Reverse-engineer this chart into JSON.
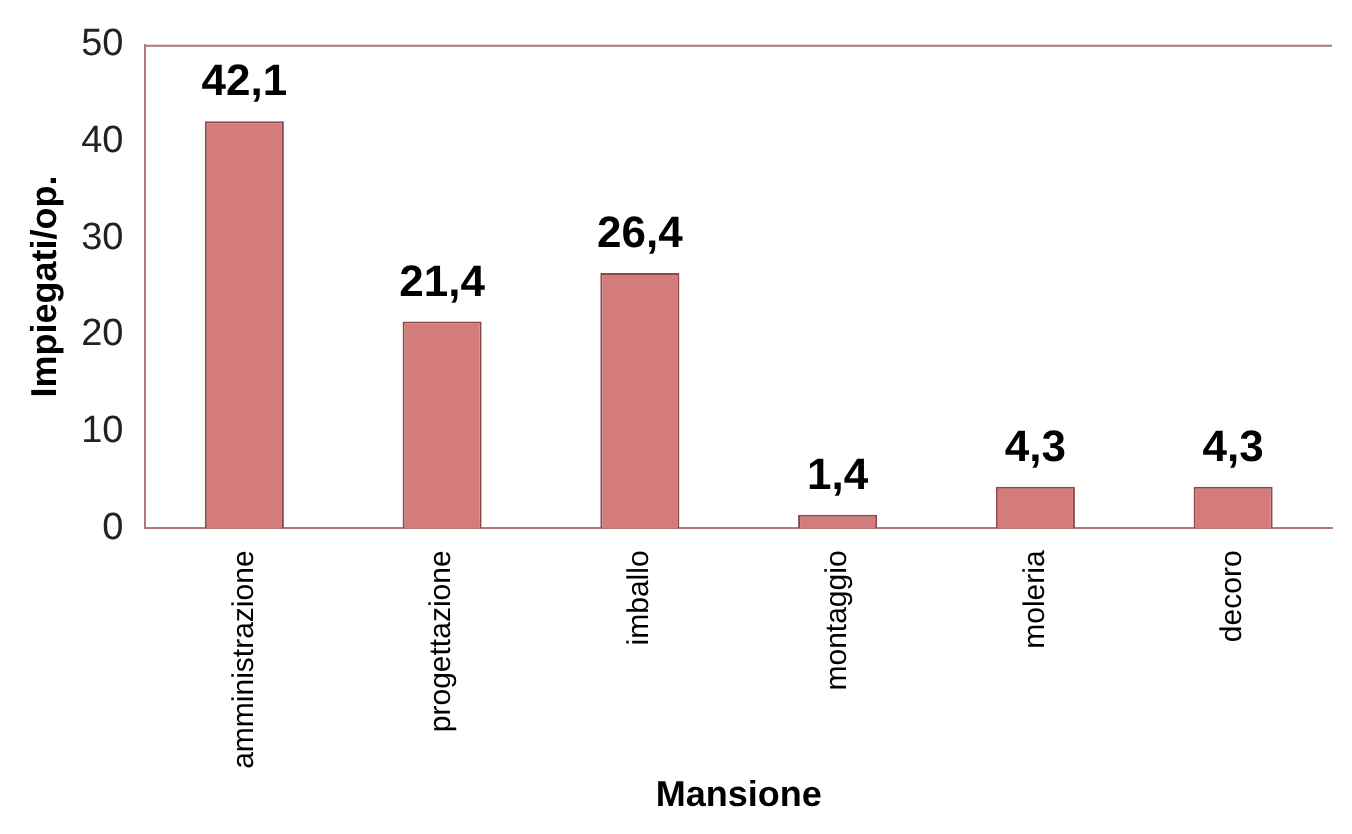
{
  "chart_data": {
    "type": "bar",
    "xlabel": "Mansione",
    "ylabel": "Impiegati/op.",
    "categories": [
      "amministrazione",
      "progettazione",
      "imballo",
      "montaggio",
      "moleria",
      "decoro"
    ],
    "values": [
      42.1,
      21.4,
      26.4,
      1.4,
      4.3,
      4.3
    ],
    "value_labels": [
      "42,1",
      "21,4",
      "26,4",
      "1,4",
      "4,3",
      "4,3"
    ],
    "color": "#d47c7c",
    "ylim": [
      0,
      50
    ],
    "yticks": [
      0,
      10,
      20,
      30,
      40,
      50
    ],
    "grid": false,
    "legend": false
  }
}
